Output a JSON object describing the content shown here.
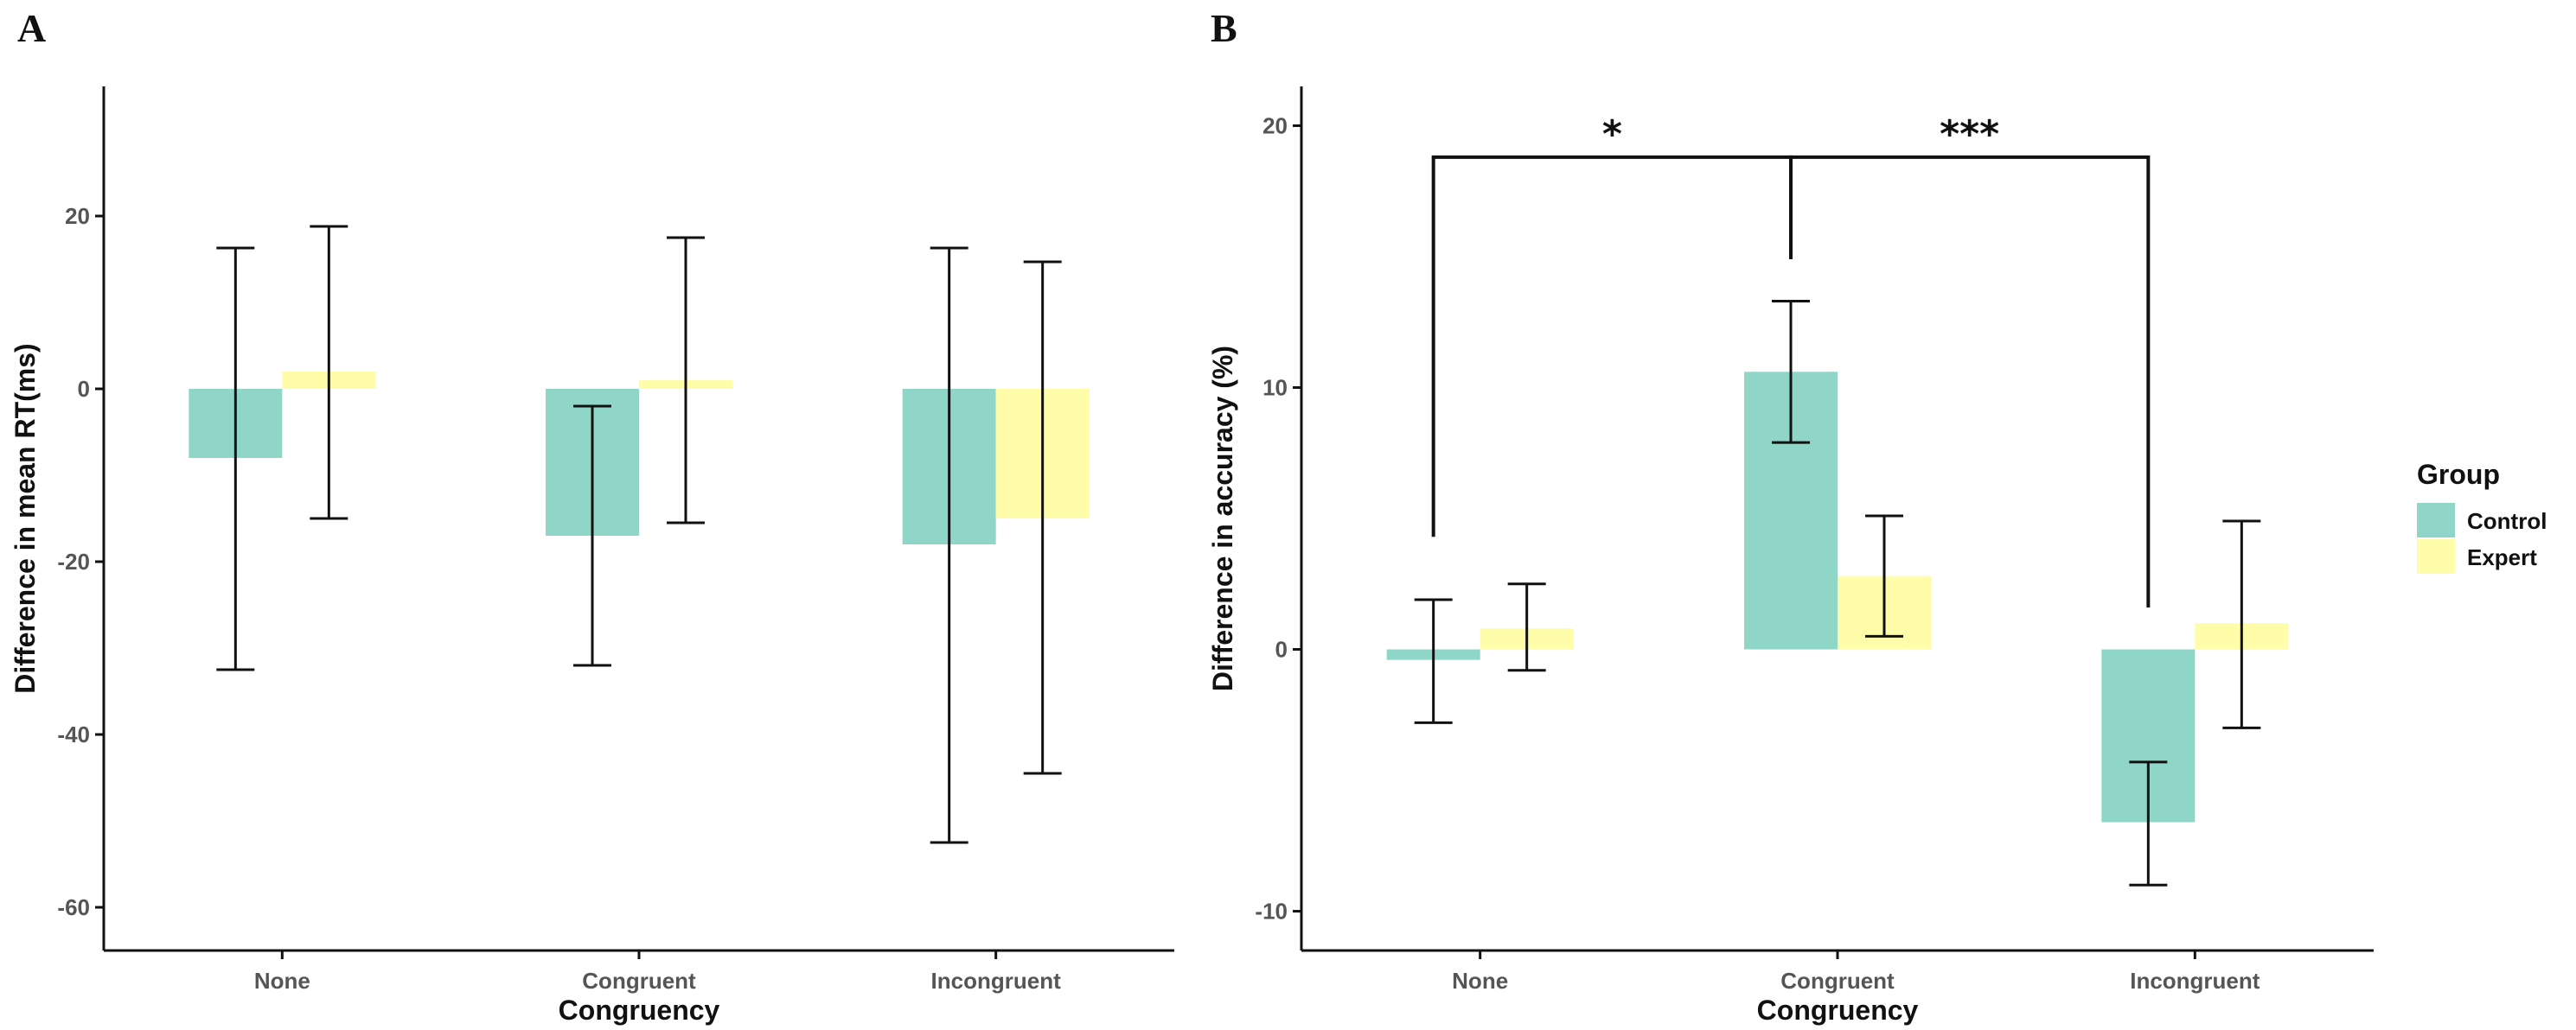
{
  "colors": {
    "Control": "#8fd5c8",
    "Expert": "#fffdaa",
    "axis": "#111111",
    "error_bar": "#111111"
  },
  "legend": {
    "title": "Group",
    "entries": [
      "Control",
      "Expert"
    ]
  },
  "chart_data": [
    {
      "panel": "A",
      "type": "bar",
      "xlabel": "Congruency",
      "ylabel": "Difference in mean RT(ms)",
      "categories": [
        "None",
        "Congruent",
        "Incongruent"
      ],
      "ylim": [
        -65,
        35
      ],
      "yticks": [
        -60,
        -40,
        -20,
        0,
        20
      ],
      "series": [
        {
          "name": "Control",
          "values": [
            -8,
            -17,
            -18
          ],
          "err_low": [
            -32.5,
            -32,
            -52.5
          ],
          "err_high": [
            16.3,
            -2,
            16.3
          ]
        },
        {
          "name": "Expert",
          "values": [
            2,
            1,
            -15
          ],
          "err_low": [
            -15,
            -15.5,
            -44.5
          ],
          "err_high": [
            18.8,
            17.5,
            14.7
          ]
        }
      ],
      "annotations": []
    },
    {
      "panel": "B",
      "type": "bar",
      "xlabel": "Congruency",
      "ylabel": "Difference in accuracy (%)",
      "categories": [
        "None",
        "Congruent",
        "Incongruent"
      ],
      "ylim": [
        -11.5,
        21.5
      ],
      "yticks": [
        -10,
        0,
        10,
        20
      ],
      "series": [
        {
          "name": "Control",
          "values": [
            -0.4,
            10.6,
            -6.6
          ],
          "err_low": [
            -2.8,
            7.9,
            -9
          ],
          "err_high": [
            1.9,
            13.3,
            -4.3
          ]
        },
        {
          "name": "Expert",
          "values": [
            0.8,
            2.8,
            1
          ],
          "err_low": [
            -0.8,
            0.5,
            -3
          ],
          "err_high": [
            2.5,
            5.1,
            4.9
          ]
        }
      ],
      "annotations": [
        {
          "type": "bracket",
          "label": "*",
          "from": "None",
          "to": "Congruent",
          "level": 18.8
        },
        {
          "type": "bracket",
          "label": "***",
          "from": "Congruent",
          "to": "Incongruent",
          "level": 18.8
        }
      ]
    }
  ]
}
